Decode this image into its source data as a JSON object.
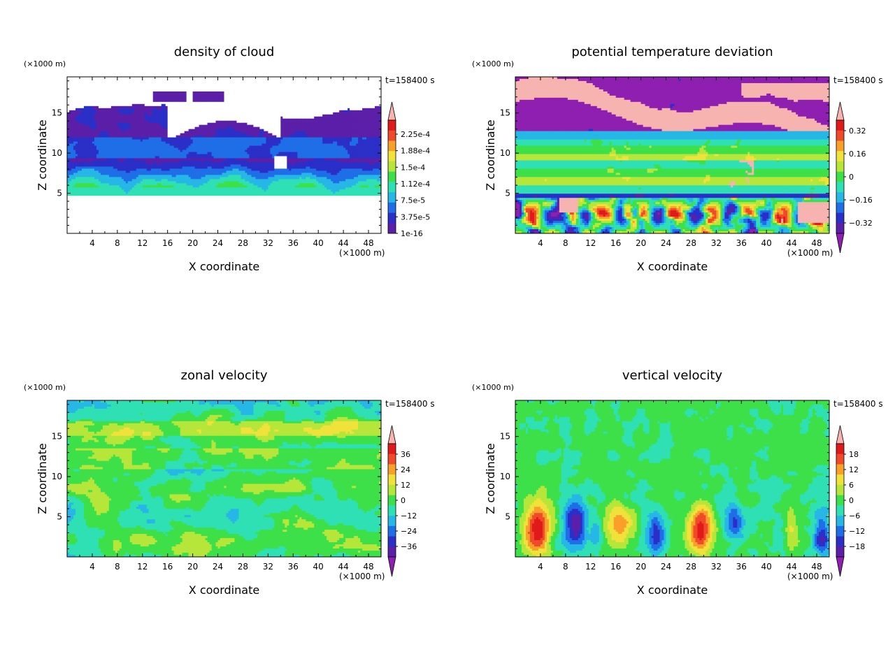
{
  "chart_data": [
    {
      "type": "heatmap",
      "title": "density of cloud",
      "xlabel": "X coordinate",
      "ylabel": "Z coordinate",
      "x_unit": "(×1000 m)",
      "y_unit": "(×1000 m)",
      "time_label": "t=158400 s",
      "xlim": [
        0,
        50
      ],
      "ylim": [
        0,
        19.5
      ],
      "x_ticks": [
        "4",
        "8",
        "12",
        "16",
        "20",
        "24",
        "28",
        "32",
        "36",
        "40",
        "44",
        "48"
      ],
      "y_ticks": [
        "5",
        "10",
        "15"
      ],
      "colorbar": {
        "labels": [
          "1e-16",
          "3.75e-5",
          "7.5e-5",
          "1.12e-4",
          "1.5e-4",
          "1.88e-4",
          "2.25e-4"
        ],
        "colors": [
          "#5b1fa8",
          "#2b2fc8",
          "#1f6ee8",
          "#27b7e6",
          "#2ee0b4",
          "#3ee04a",
          "#b6e63a",
          "#f0e23a",
          "#f8a02a",
          "#f04a2a",
          "#e01a1a"
        ],
        "over_color": "#f6b3b0",
        "under_color": "#ffffff",
        "has_under_arrow": false
      },
      "field": "cloud"
    },
    {
      "type": "heatmap",
      "title": "potential temperature deviation",
      "xlabel": "X coordinate",
      "ylabel": "Z coordinate",
      "x_unit": "(×1000 m)",
      "y_unit": "(×1000 m)",
      "time_label": "t=158400 s",
      "xlim": [
        0,
        50
      ],
      "ylim": [
        0,
        19.5
      ],
      "x_ticks": [
        "4",
        "8",
        "12",
        "16",
        "20",
        "24",
        "28",
        "32",
        "36",
        "40",
        "44",
        "48"
      ],
      "y_ticks": [
        "5",
        "10",
        "15"
      ],
      "colorbar": {
        "labels": [
          "−0.32",
          "−0.16",
          "0",
          "0.16",
          "0.32"
        ],
        "colors": [
          "#5b1fa8",
          "#2b2fc8",
          "#1f6ee8",
          "#27b7e6",
          "#2ee0b4",
          "#3ee04a",
          "#b6e63a",
          "#f0e23a",
          "#f8a02a",
          "#f04a2a",
          "#e01a1a"
        ],
        "over_color": "#f6b3b0",
        "under_color": "#8e1fb0",
        "has_under_arrow": true
      },
      "field": "theta"
    },
    {
      "type": "heatmap",
      "title": "zonal velocity",
      "xlabel": "X coordinate",
      "ylabel": "Z coordinate",
      "x_unit": "(×1000 m)",
      "y_unit": "(×1000 m)",
      "time_label": "t=158400 s",
      "xlim": [
        0,
        50
      ],
      "ylim": [
        0,
        19.5
      ],
      "x_ticks": [
        "4",
        "8",
        "12",
        "16",
        "20",
        "24",
        "28",
        "32",
        "36",
        "40",
        "44",
        "48"
      ],
      "y_ticks": [
        "5",
        "10",
        "15"
      ],
      "colorbar": {
        "labels": [
          "−36",
          "−24",
          "−12",
          "0",
          "12",
          "24",
          "36"
        ],
        "colors": [
          "#5b1fa8",
          "#2b2fc8",
          "#1f6ee8",
          "#27b7e6",
          "#2ee0b4",
          "#3ee04a",
          "#b6e63a",
          "#f0e23a",
          "#f8a02a",
          "#f04a2a",
          "#e01a1a"
        ],
        "over_color": "#f6b3b0",
        "under_color": "#8e1fb0",
        "has_under_arrow": true
      },
      "field": "u"
    },
    {
      "type": "heatmap",
      "title": "vertical velocity",
      "xlabel": "X coordinate",
      "ylabel": "Z coordinate",
      "x_unit": "(×1000 m)",
      "y_unit": "(×1000 m)",
      "time_label": "t=158400 s",
      "xlim": [
        0,
        50
      ],
      "ylim": [
        0,
        19.5
      ],
      "x_ticks": [
        "4",
        "8",
        "12",
        "16",
        "20",
        "24",
        "28",
        "32",
        "36",
        "40",
        "44",
        "48"
      ],
      "y_ticks": [
        "5",
        "10",
        "15"
      ],
      "colorbar": {
        "labels": [
          "−18",
          "−12",
          "−6",
          "0",
          "6",
          "12",
          "18"
        ],
        "colors": [
          "#5b1fa8",
          "#2b2fc8",
          "#1f6ee8",
          "#27b7e6",
          "#2ee0b4",
          "#3ee04a",
          "#b6e63a",
          "#f0e23a",
          "#f8a02a",
          "#f04a2a",
          "#e01a1a"
        ],
        "over_color": "#f6b3b0",
        "under_color": "#8e1fb0",
        "has_under_arrow": true
      },
      "field": "w"
    }
  ]
}
